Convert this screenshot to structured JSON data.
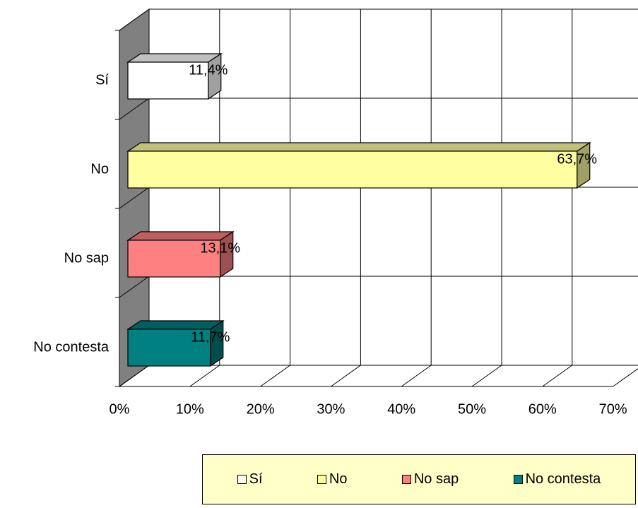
{
  "chart_data": {
    "type": "bar",
    "orientation": "horizontal",
    "three_d": true,
    "categories": [
      "Sí",
      "No",
      "No sap",
      "No contesta"
    ],
    "values": [
      11.4,
      63.7,
      13.1,
      11.7
    ],
    "value_labels": [
      "11,4%",
      "63,7%",
      "13,1%",
      "11,7%"
    ],
    "xlim": [
      0,
      70
    ],
    "x_ticks": [
      "0%",
      "10%",
      "20%",
      "30%",
      "40%",
      "50%",
      "60%",
      "70%"
    ],
    "grid": true,
    "legend_position": "bottom-right",
    "colors": {
      "front": [
        "#ffffff",
        "#ffffa0",
        "#ff8080",
        "#008080"
      ],
      "top": [
        "#c0c0c0",
        "#c0c07a",
        "#bf6060",
        "#006060"
      ],
      "side": [
        "#a0a0a0",
        "#9f9f66",
        "#a05050",
        "#004d4d"
      ],
      "wall": "#808080",
      "legend_bg": "#ffffc8"
    },
    "legend": [
      {
        "label": "Sí",
        "color": "#ffffff"
      },
      {
        "label": "No",
        "color": "#ffffa0"
      },
      {
        "label": "No sap",
        "color": "#ff8080"
      },
      {
        "label": "No contesta",
        "color": "#008080"
      }
    ]
  }
}
